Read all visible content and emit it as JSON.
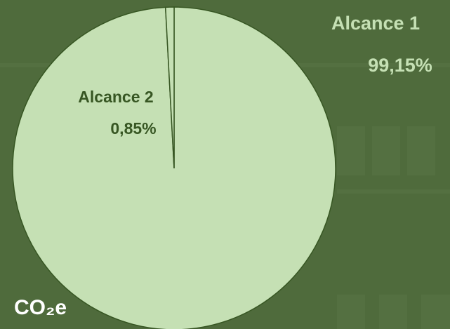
{
  "chart_data": {
    "type": "pie",
    "categories": [
      "Alcance 1",
      "Alcance 2"
    ],
    "values": [
      99.15,
      0.85
    ],
    "value_labels": [
      "99,15%",
      "0,85%"
    ],
    "color": "#c5e0b4",
    "unit_label": "CO₂e"
  }
}
